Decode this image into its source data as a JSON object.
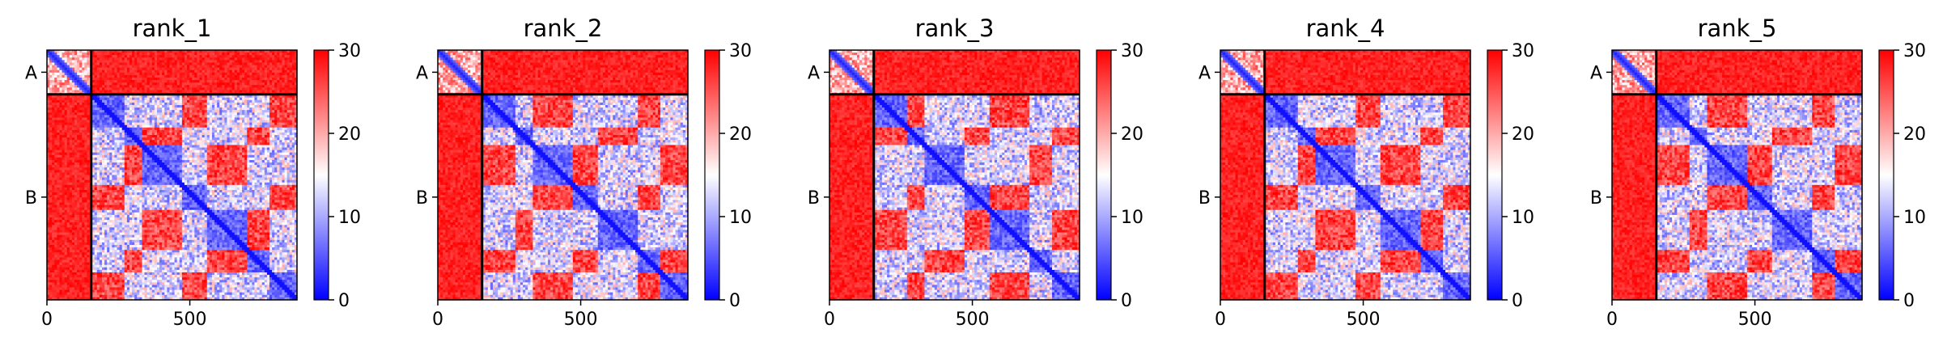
{
  "figure": {
    "colormap": {
      "name": "bwr",
      "low": "#0000ff",
      "mid": "#ffffff",
      "high": "#ff0000"
    },
    "chain_boundary_color": "#000000"
  },
  "chart_data": [
    {
      "type": "heatmap",
      "title": "rank_1",
      "x_ticks": [
        0,
        500
      ],
      "x_range": [
        0,
        875
      ],
      "y_ticks": [
        "A",
        "B"
      ],
      "chain_lengths": {
        "A": 155,
        "B": 720
      },
      "colorbar": {
        "range": [
          0,
          30
        ],
        "ticks": [
          0,
          10,
          20,
          30
        ]
      }
    },
    {
      "type": "heatmap",
      "title": "rank_2",
      "x_ticks": [
        0,
        500
      ],
      "x_range": [
        0,
        875
      ],
      "y_ticks": [
        "A",
        "B"
      ],
      "chain_lengths": {
        "A": 155,
        "B": 720
      },
      "colorbar": {
        "range": [
          0,
          30
        ],
        "ticks": [
          0,
          10,
          20,
          30
        ]
      }
    },
    {
      "type": "heatmap",
      "title": "rank_3",
      "x_ticks": [
        0,
        500
      ],
      "x_range": [
        0,
        875
      ],
      "y_ticks": [
        "A",
        "B"
      ],
      "chain_lengths": {
        "A": 155,
        "B": 720
      },
      "colorbar": {
        "range": [
          0,
          30
        ],
        "ticks": [
          0,
          10,
          20,
          30
        ]
      }
    },
    {
      "type": "heatmap",
      "title": "rank_4",
      "x_ticks": [
        0,
        500
      ],
      "x_range": [
        0,
        875
      ],
      "y_ticks": [
        "A",
        "B"
      ],
      "chain_lengths": {
        "A": 155,
        "B": 720
      },
      "colorbar": {
        "range": [
          0,
          30
        ],
        "ticks": [
          0,
          10,
          20,
          30
        ]
      }
    },
    {
      "type": "heatmap",
      "title": "rank_5",
      "x_ticks": [
        0,
        500
      ],
      "x_range": [
        0,
        875
      ],
      "y_ticks": [
        "A",
        "B"
      ],
      "chain_lengths": {
        "A": 155,
        "B": 720
      },
      "colorbar": {
        "range": [
          0,
          30
        ],
        "ticks": [
          0,
          10,
          20,
          30
        ]
      }
    }
  ]
}
